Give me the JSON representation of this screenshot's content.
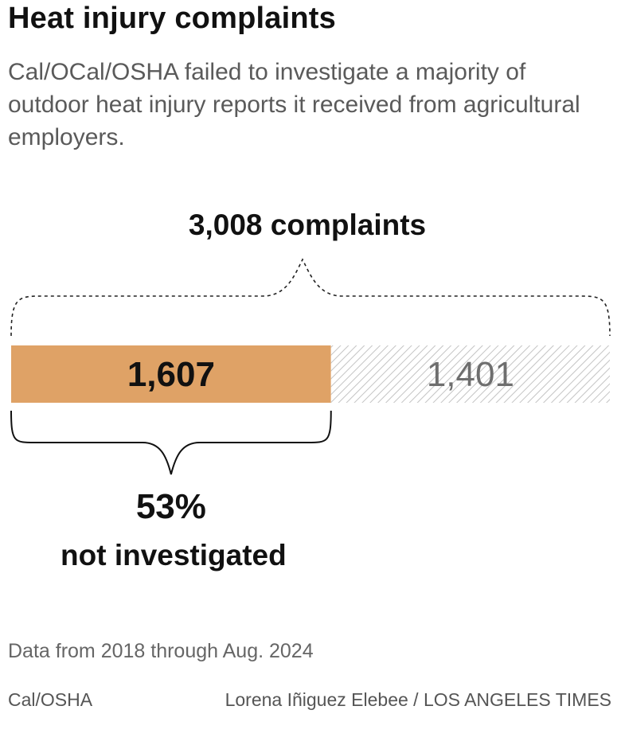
{
  "header": {
    "title": "Heat injury complaints",
    "subtitle": "Cal/OCal/OSHA failed to investigate a majority of outdoor heat injury reports it received from agricultural employers."
  },
  "chart_data": {
    "type": "bar",
    "orientation": "horizontal-stacked",
    "total": 3008,
    "total_label": "3,008 complaints",
    "segments": [
      {
        "key": "not_investigated",
        "value": 1607,
        "label": "1,607",
        "color": "#dfa266"
      },
      {
        "key": "investigated",
        "value": 1401,
        "label": "1,401",
        "color": "#c8c8c8",
        "pattern": "hatched"
      }
    ],
    "percent_label": "53%",
    "percent_caption": "not investigated"
  },
  "footer": {
    "note": "Data from 2018 through Aug. 2024",
    "source": "Cal/OSHA",
    "credit": "Lorena Iñiguez Elebee / LOS ANGELES TIMES"
  }
}
